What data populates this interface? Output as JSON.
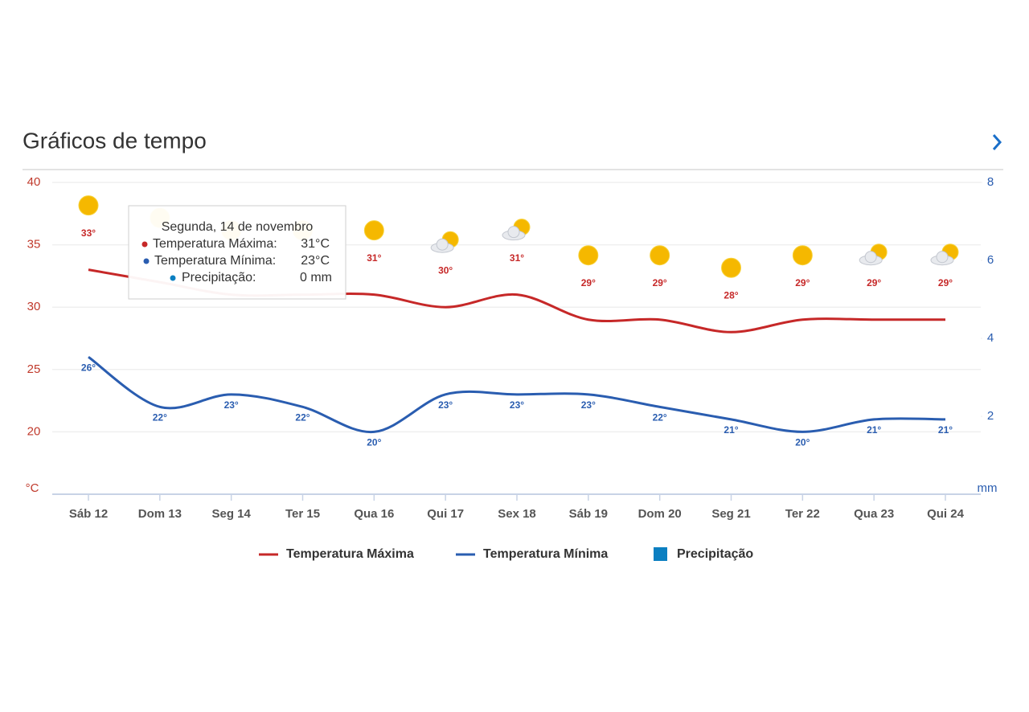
{
  "chart_data": {
    "type": "line",
    "title": "Gráficos de tempo",
    "categories": [
      "Sáb 12",
      "Dom 13",
      "Seg 14",
      "Ter 15",
      "Qua 16",
      "Qui 17",
      "Sex 18",
      "Sáb 19",
      "Dom 20",
      "Seg 21",
      "Ter 22",
      "Qua 23",
      "Qui 24"
    ],
    "series": [
      {
        "name": "Temperatura Máxima",
        "color": "#c62828",
        "values": [
          33,
          32,
          31,
          31,
          31,
          30,
          31,
          29,
          29,
          28,
          29,
          29,
          29
        ],
        "value_labels": [
          "33°",
          null,
          null,
          null,
          "31°",
          "30°",
          "31°",
          "29°",
          "29°",
          "28°",
          "29°",
          "29°",
          "29°"
        ]
      },
      {
        "name": "Temperatura Mínima",
        "color": "#2a5db0",
        "values": [
          26,
          22,
          23,
          22,
          20,
          23,
          23,
          23,
          22,
          21,
          20,
          21,
          21
        ],
        "value_labels": [
          "26°",
          "22°",
          "23°",
          "22°",
          "20°",
          "23°",
          "23°",
          "23°",
          "22°",
          "21°",
          "20°",
          "21°",
          "21°"
        ]
      },
      {
        "name": "Precipitação",
        "color": "#0b7fc1",
        "axis": "y2",
        "values": [
          0,
          0,
          0,
          0,
          0,
          0,
          0,
          0,
          0,
          0,
          0,
          0,
          0
        ]
      }
    ],
    "ylim": [
      15,
      40
    ],
    "yticks": [
      20,
      25,
      30,
      35,
      40
    ],
    "ylabel": "°C",
    "y2lim": [
      0,
      8
    ],
    "y2ticks": [
      2,
      4,
      6,
      8
    ],
    "y2label": "mm",
    "grid": true,
    "tooltip": {
      "title": "Segunda, 14 de novembro",
      "rows": [
        {
          "label": "Temperatura Máxima:",
          "value": "31°C"
        },
        {
          "label": "Temperatura Mínima:",
          "value": "23°C"
        },
        {
          "label": "Precipitação:",
          "value": "0 mm"
        }
      ]
    }
  }
}
